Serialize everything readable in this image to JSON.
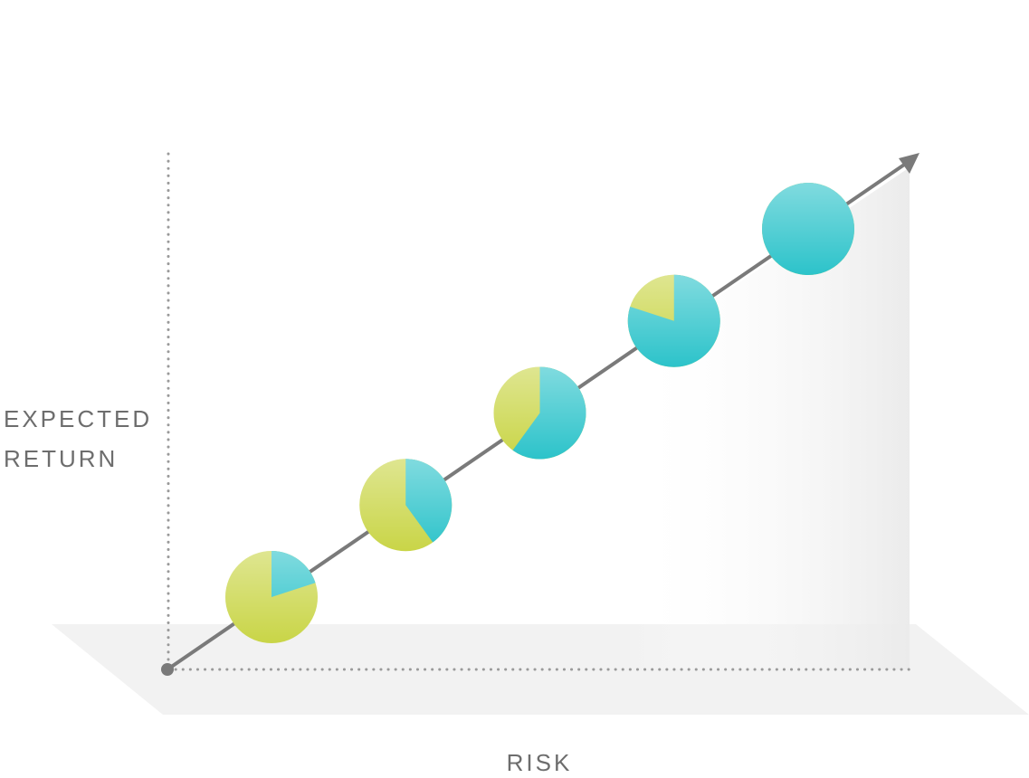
{
  "labels": {
    "y_axis": [
      "EXPECTED",
      "RETURN"
    ],
    "x_axis": "RISK"
  },
  "pies": {
    "teal_share": [
      20,
      40,
      60,
      80,
      100
    ],
    "teal_color": "#2cc3ca",
    "green_color": "#c9d547"
  }
}
